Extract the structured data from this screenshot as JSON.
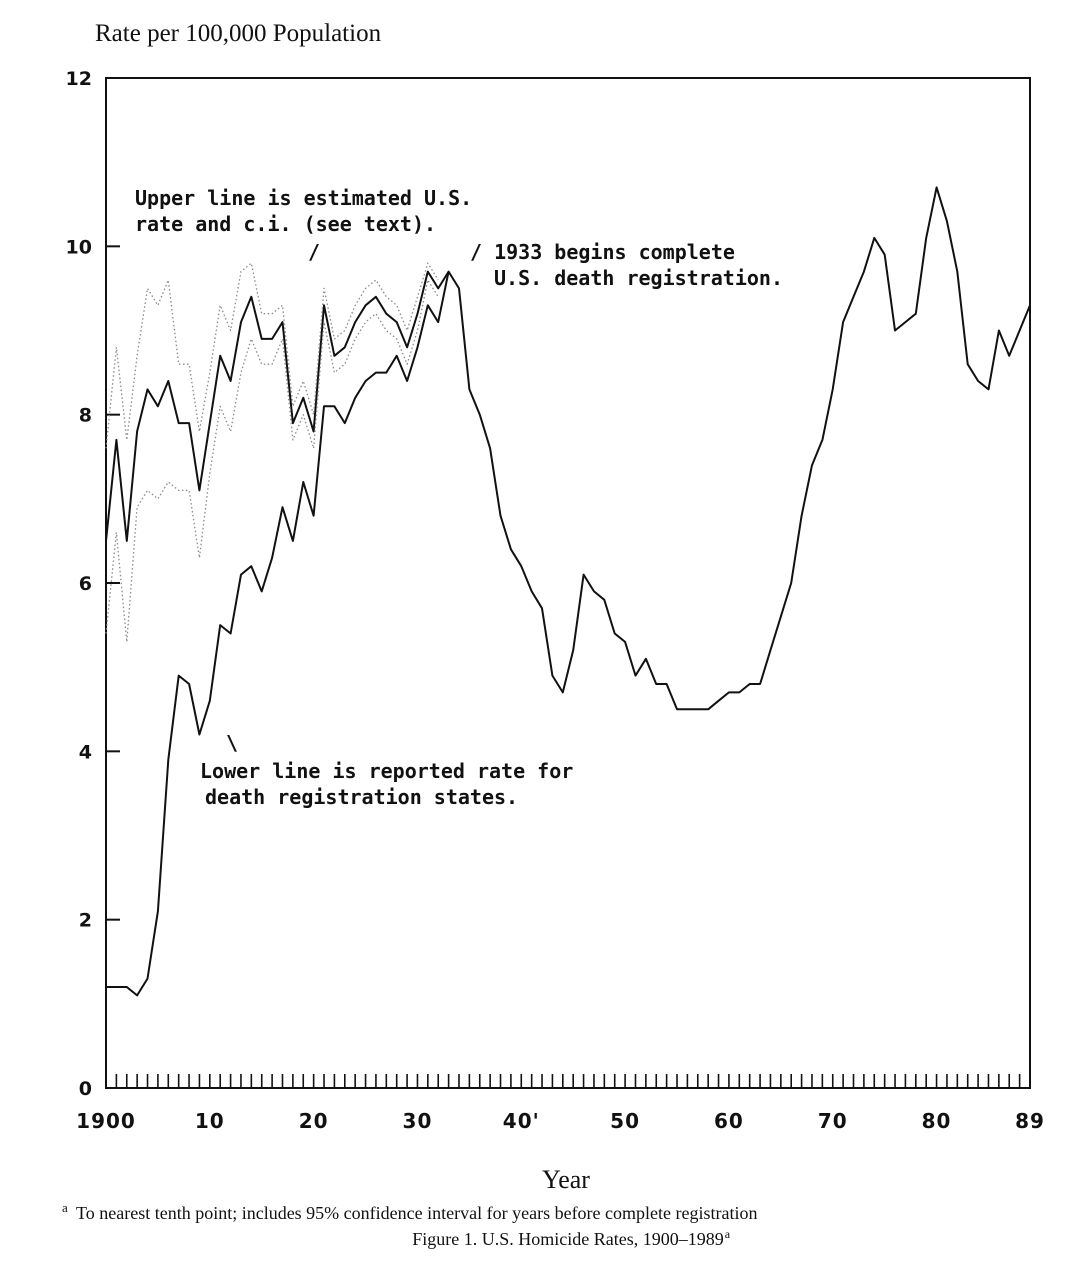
{
  "chart_data": {
    "type": "line",
    "title": "Figure 1. U.S. Homicide Rates, 1900–1989",
    "title_superscript": "a",
    "ylabel": "Rate per 100,000 Population",
    "xlabel": "Year",
    "xlim": [
      1900,
      1989
    ],
    "ylim": [
      0,
      12
    ],
    "y_ticks": [
      0,
      2,
      4,
      6,
      8,
      10,
      12
    ],
    "x_tick_values": [
      1900,
      1910,
      1920,
      1930,
      1940,
      1950,
      1960,
      1970,
      1980,
      1989
    ],
    "x_tick_labels": [
      "1900",
      "10",
      "20",
      "30",
      "40'",
      "50",
      "60",
      "70",
      "80",
      "89"
    ],
    "grid": false,
    "annotations": {
      "upper": [
        "Upper line is estimated U.S.",
        "rate and c.i. (see text)."
      ],
      "upper_pointer": "/",
      "registration": [
        "/ 1933 begins complete",
        "U.S. death registration."
      ],
      "lower_pointer": "\\",
      "lower": [
        "Lower line is reported rate for",
        "death registration states."
      ]
    },
    "footnote_marker": "a",
    "footnote": "To nearest tenth point; includes 95% confidence interval for years before complete registration",
    "series": [
      {
        "style": "solid",
        "x": [
          1900,
          1901,
          1902,
          1903,
          1904,
          1905,
          1906,
          1907,
          1908,
          1909,
          1910,
          1911,
          1912,
          1913,
          1914,
          1915,
          1916,
          1917,
          1918,
          1919,
          1920,
          1921,
          1922,
          1923,
          1924,
          1925,
          1926,
          1927,
          1928,
          1929,
          1930,
          1931,
          1932,
          1933
        ],
        "values": [
          6.5,
          7.7,
          6.5,
          7.8,
          8.3,
          8.1,
          8.4,
          7.9,
          7.9,
          7.1,
          7.9,
          8.7,
          8.4,
          9.1,
          9.4,
          8.9,
          8.9,
          9.1,
          7.9,
          8.2,
          7.8,
          9.3,
          8.7,
          8.8,
          9.1,
          9.3,
          9.4,
          9.2,
          9.1,
          8.8,
          9.2,
          9.7,
          9.5,
          9.7
        ]
      },
      {
        "style": "dotted",
        "x": [
          1900,
          1901,
          1902,
          1903,
          1904,
          1905,
          1906,
          1907,
          1908,
          1909,
          1910,
          1911,
          1912,
          1913,
          1914,
          1915,
          1916,
          1917,
          1918,
          1919,
          1920,
          1921,
          1922,
          1923,
          1924,
          1925,
          1926,
          1927,
          1928,
          1929,
          1930,
          1931,
          1932
        ],
        "values": [
          7.6,
          8.8,
          7.7,
          8.7,
          9.5,
          9.3,
          9.6,
          8.6,
          8.6,
          7.8,
          8.5,
          9.3,
          9.0,
          9.7,
          9.8,
          9.2,
          9.2,
          9.3,
          8.1,
          8.4,
          8.0,
          9.5,
          8.9,
          9.0,
          9.3,
          9.5,
          9.6,
          9.4,
          9.3,
          9.0,
          9.4,
          9.8,
          9.6
        ]
      },
      {
        "style": "dotted",
        "x": [
          1900,
          1901,
          1902,
          1903,
          1904,
          1905,
          1906,
          1907,
          1908,
          1909,
          1910,
          1911,
          1912,
          1913,
          1914,
          1915,
          1916,
          1917,
          1918,
          1919,
          1920,
          1921,
          1922,
          1923,
          1924,
          1925,
          1926,
          1927,
          1928,
          1929,
          1930,
          1931,
          1932
        ],
        "values": [
          5.4,
          6.6,
          5.3,
          6.9,
          7.1,
          7.0,
          7.2,
          7.1,
          7.1,
          6.3,
          7.3,
          8.1,
          7.8,
          8.5,
          8.9,
          8.6,
          8.6,
          8.9,
          7.7,
          8.0,
          7.6,
          9.1,
          8.5,
          8.6,
          8.9,
          9.1,
          9.2,
          9.0,
          8.9,
          8.6,
          9.0,
          9.6,
          9.4
        ]
      },
      {
        "style": "solid",
        "x": [
          1900,
          1901,
          1902,
          1903,
          1904,
          1905,
          1906,
          1907,
          1908,
          1909,
          1910,
          1911,
          1912,
          1913,
          1914,
          1915,
          1916,
          1917,
          1918,
          1919,
          1920,
          1921,
          1922,
          1923,
          1924,
          1925,
          1926,
          1927,
          1928,
          1929,
          1930,
          1931,
          1932,
          1933,
          1934,
          1935,
          1936,
          1937,
          1938,
          1939,
          1940,
          1941,
          1942,
          1943,
          1944,
          1945,
          1946,
          1947,
          1948,
          1949,
          1950,
          1951,
          1952,
          1953,
          1954,
          1955,
          1956,
          1957,
          1958,
          1959,
          1960,
          1961,
          1962,
          1963,
          1964,
          1965,
          1966,
          1967,
          1968,
          1969,
          1970,
          1971,
          1972,
          1973,
          1974,
          1975,
          1976,
          1977,
          1978,
          1979,
          1980,
          1981,
          1982,
          1983,
          1984,
          1985,
          1986,
          1987,
          1988,
          1989
        ],
        "values": [
          1.2,
          1.2,
          1.2,
          1.1,
          1.3,
          2.1,
          3.9,
          4.9,
          4.8,
          4.2,
          4.6,
          5.5,
          5.4,
          6.1,
          6.2,
          5.9,
          6.3,
          6.9,
          6.5,
          7.2,
          6.8,
          8.1,
          8.1,
          7.9,
          8.2,
          8.4,
          8.5,
          8.5,
          8.7,
          8.4,
          8.8,
          9.3,
          9.1,
          9.7,
          9.5,
          8.3,
          8.0,
          7.6,
          6.8,
          6.4,
          6.2,
          5.9,
          5.7,
          4.9,
          4.7,
          5.2,
          6.1,
          5.9,
          5.8,
          5.4,
          5.3,
          4.9,
          5.1,
          4.8,
          4.8,
          4.5,
          4.5,
          4.5,
          4.5,
          4.6,
          4.7,
          4.7,
          4.8,
          4.8,
          5.2,
          5.6,
          6.0,
          6.8,
          7.4,
          7.7,
          8.3,
          9.1,
          9.4,
          9.7,
          10.1,
          9.9,
          9.0,
          9.1,
          9.2,
          10.1,
          10.7,
          10.3,
          9.7,
          8.6,
          8.4,
          8.3,
          9.0,
          8.7,
          9.0,
          9.3
        ]
      }
    ]
  }
}
